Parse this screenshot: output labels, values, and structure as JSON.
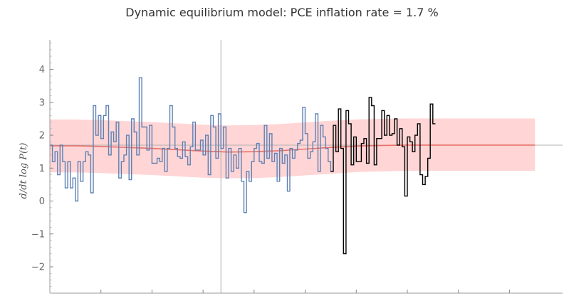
{
  "chart_data": {
    "type": "line",
    "title": "Dynamic equilibrium model: PCE inflation rate = 1.7 %",
    "xlabel": "",
    "ylabel": "d/dt log P(t)",
    "ylim": [
      -2.8,
      4.9
    ],
    "yticks": [
      -2,
      -1,
      0,
      1,
      2,
      3,
      4
    ],
    "x_range": [
      0,
      193
    ],
    "reference_lines": {
      "horizontal_y": 1.7,
      "vertical_x": 67
    },
    "grid": false,
    "legend": "none",
    "colors": {
      "history": "#5e81b5",
      "recent": "#000000",
      "model": "#e8716b",
      "band": "#ffd5d5",
      "reference": "#b0b0b0"
    },
    "band": {
      "name": "",
      "x": [
        0,
        10,
        20,
        30,
        40,
        50,
        60,
        70,
        80,
        90,
        100,
        110,
        120,
        130,
        140,
        150,
        160,
        170,
        180,
        190
      ],
      "lower": [
        0.87,
        0.87,
        0.85,
        0.82,
        0.79,
        0.75,
        0.71,
        0.69,
        0.7,
        0.73,
        0.78,
        0.83,
        0.88,
        0.9,
        0.92,
        0.92,
        0.92,
        0.92,
        0.92,
        0.92
      ],
      "upper": [
        2.48,
        2.48,
        2.46,
        2.43,
        2.4,
        2.36,
        2.32,
        2.3,
        2.31,
        2.34,
        2.39,
        2.44,
        2.48,
        2.5,
        2.51,
        2.51,
        2.51,
        2.51,
        2.51,
        2.51
      ]
    },
    "series": [
      {
        "name": "",
        "style": "step",
        "x_start": 0,
        "values": [
          1.7,
          1.2,
          1.5,
          0.8,
          1.7,
          1.2,
          0.4,
          1.2,
          0.4,
          0.7,
          0.0,
          1.2,
          0.6,
          1.2,
          1.5,
          1.4,
          0.25,
          2.9,
          2.0,
          2.6,
          1.9,
          2.6,
          2.9,
          1.4,
          2.1,
          1.8,
          2.4,
          0.7,
          1.2,
          1.4,
          2.0,
          0.65,
          2.5,
          2.1,
          1.4,
          3.75,
          2.25,
          2.25,
          1.55,
          2.3,
          1.15,
          1.15,
          1.3,
          1.2,
          1.6,
          0.9,
          1.6,
          2.9,
          2.25,
          1.6,
          1.35,
          1.3,
          1.8,
          1.35,
          1.1,
          1.65,
          2.4,
          1.55,
          1.55,
          1.85,
          1.4,
          2.0,
          0.8,
          2.6,
          2.25,
          1.3,
          2.65,
          1.6,
          2.25,
          0.7,
          1.6,
          0.9,
          1.4,
          1.0,
          1.6,
          0.6,
          -0.35,
          0.9,
          0.6,
          1.2,
          1.6,
          1.75,
          1.2,
          1.15,
          2.3,
          1.3,
          2.05,
          1.2,
          1.45,
          0.6,
          1.6,
          1.15,
          1.4,
          0.3,
          1.6,
          1.3,
          1.55,
          1.75,
          1.85,
          2.85,
          2.05,
          1.3,
          1.5,
          1.8,
          2.65,
          0.9,
          2.3,
          1.95,
          1.6,
          1.2,
          0.9
        ]
      },
      {
        "name": "",
        "style": "step",
        "x_start": 110,
        "values": [
          0.9,
          2.3,
          1.5,
          2.8,
          1.6,
          -1.6,
          2.75,
          2.35,
          1.1,
          1.95,
          1.2,
          1.2,
          1.75,
          1.9,
          1.15,
          3.15,
          2.9,
          1.1,
          1.9,
          1.9,
          2.75,
          2.0,
          2.6,
          2.0,
          2.05,
          2.5,
          1.7,
          2.2,
          1.65,
          0.15,
          1.95,
          1.8,
          1.5,
          2.0,
          2.35,
          0.8,
          0.5,
          0.75,
          1.3,
          2.95,
          2.35
        ]
      },
      {
        "name": "",
        "style": "line",
        "x": [
          0,
          10,
          20,
          30,
          40,
          50,
          60,
          70,
          80,
          90,
          100,
          110,
          120,
          130,
          140,
          150,
          160,
          170,
          180,
          190
        ],
        "values": [
          1.68,
          1.68,
          1.66,
          1.63,
          1.6,
          1.56,
          1.52,
          1.49,
          1.5,
          1.53,
          1.58,
          1.63,
          1.67,
          1.69,
          1.7,
          1.7,
          1.7,
          1.7,
          1.7,
          1.7
        ]
      }
    ]
  }
}
